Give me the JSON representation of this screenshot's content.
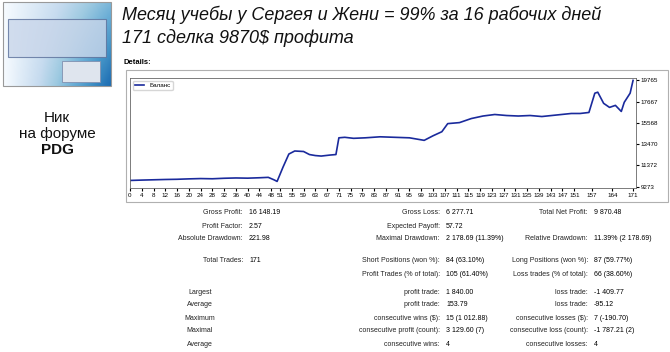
{
  "header": {
    "title_lines": [
      "Месяц учебы у Сергея и Жени = 99% за 16 рабочих дней",
      "171 сделка 9870$ профита"
    ]
  },
  "avatar": {
    "lines": [
      "Ник",
      "на форуме",
      "PDG"
    ]
  },
  "details_label": "Details:",
  "chart_data": {
    "type": "line",
    "x": [
      0,
      4,
      8,
      12,
      16,
      20,
      24,
      28,
      32,
      36,
      40,
      44,
      47,
      49,
      50,
      52,
      54,
      56,
      59,
      61,
      63,
      65,
      68,
      70,
      71,
      73,
      76,
      80,
      85,
      90,
      95,
      98,
      100,
      103,
      106,
      108,
      112,
      116,
      120,
      124,
      128,
      132,
      136,
      140,
      145,
      150,
      153,
      156,
      158,
      159,
      161,
      163,
      165,
      167,
      168,
      170,
      171
    ],
    "series": [
      {
        "name": "Баланс",
        "color": "#1a2a9c",
        "values": [
          9895,
          9930,
          9960,
          9990,
          10010,
          10050,
          10080,
          10060,
          10110,
          10140,
          10120,
          10160,
          10200,
          9950,
          9800,
          11200,
          12500,
          12800,
          12750,
          12450,
          12350,
          12300,
          12400,
          12450,
          14100,
          14150,
          14050,
          14100,
          14200,
          14150,
          14100,
          13950,
          13850,
          14300,
          14700,
          15500,
          15600,
          16000,
          16250,
          16400,
          16300,
          16250,
          16300,
          16200,
          16350,
          16500,
          16500,
          16600,
          18500,
          18600,
          17500,
          17100,
          17300,
          16700,
          17600,
          18500,
          19765
        ]
      }
    ],
    "xlim": [
      0,
      172
    ],
    "xticks": [
      0,
      4,
      8,
      12,
      16,
      20,
      24,
      28,
      32,
      36,
      40,
      44,
      48,
      51,
      55,
      59,
      63,
      67,
      71,
      75,
      79,
      83,
      87,
      91,
      95,
      99,
      103,
      107,
      111,
      115,
      119,
      123,
      127,
      131,
      135,
      139,
      143,
      147,
      151,
      157,
      164,
      171
    ],
    "ylim": [
      9150,
      20000
    ],
    "yticks": [
      9273,
      11372,
      13470,
      15568,
      17667,
      19765
    ],
    "legend": "upper left"
  },
  "stats": {
    "rows": [
      [
        {
          "label": "Gross Profit:",
          "value": "16 148.19"
        },
        {
          "label": "Gross Loss:",
          "value": "6 277.71"
        },
        {
          "label": "Total Net Profit:",
          "value": "9 870.48"
        }
      ],
      [
        {
          "label": "Profit Factor:",
          "value": "2.57"
        },
        {
          "label": "Expected Payoff:",
          "value": "57.72"
        },
        null
      ],
      [
        {
          "label": "Absolute Drawdown:",
          "value": "221.98"
        },
        {
          "label": "Maximal Drawdown:",
          "value": "2 178.69 (11.39%)"
        },
        {
          "label": "Relative Drawdown:",
          "value": "11.39% (2 178.69)"
        }
      ],
      [
        {
          "label": "Total Trades:",
          "value": "171"
        },
        {
          "label": "Short Positions (won %):",
          "value": "84 (63.10%)"
        },
        {
          "label": "Long Positions (won %):",
          "value": "87 (59.77%)"
        }
      ],
      [
        null,
        {
          "label": "Profit Trades (% of total):",
          "value": "105 (61.40%)"
        },
        {
          "label": "Loss trades (% of total):",
          "value": "66 (38.60%)"
        }
      ],
      [
        {
          "label": "Largest"
        },
        {
          "label": "profit trade:",
          "value": "1 840.00"
        },
        {
          "label": "loss trade:",
          "value": "-1 409.77"
        }
      ],
      [
        {
          "label": "Average"
        },
        {
          "label": "profit trade:",
          "value": "153.79"
        },
        {
          "label": "loss trade:",
          "value": "-95.12"
        }
      ],
      [
        {
          "label": "Maximum"
        },
        {
          "label": "consecutive wins ($):",
          "value": "15 (1 012.88)"
        },
        {
          "label": "consecutive losses ($):",
          "value": "7 (-190.70)"
        }
      ],
      [
        {
          "label": "Maximal"
        },
        {
          "label": "consecutive profit (count):",
          "value": "3 129.60 (7)"
        },
        {
          "label": "consecutive loss (count):",
          "value": "-1 787.21 (2)"
        }
      ],
      [
        {
          "label": "Average"
        },
        {
          "label": "consecutive wins:",
          "value": "4"
        },
        {
          "label": "consecutive losses:",
          "value": "4"
        }
      ]
    ]
  }
}
